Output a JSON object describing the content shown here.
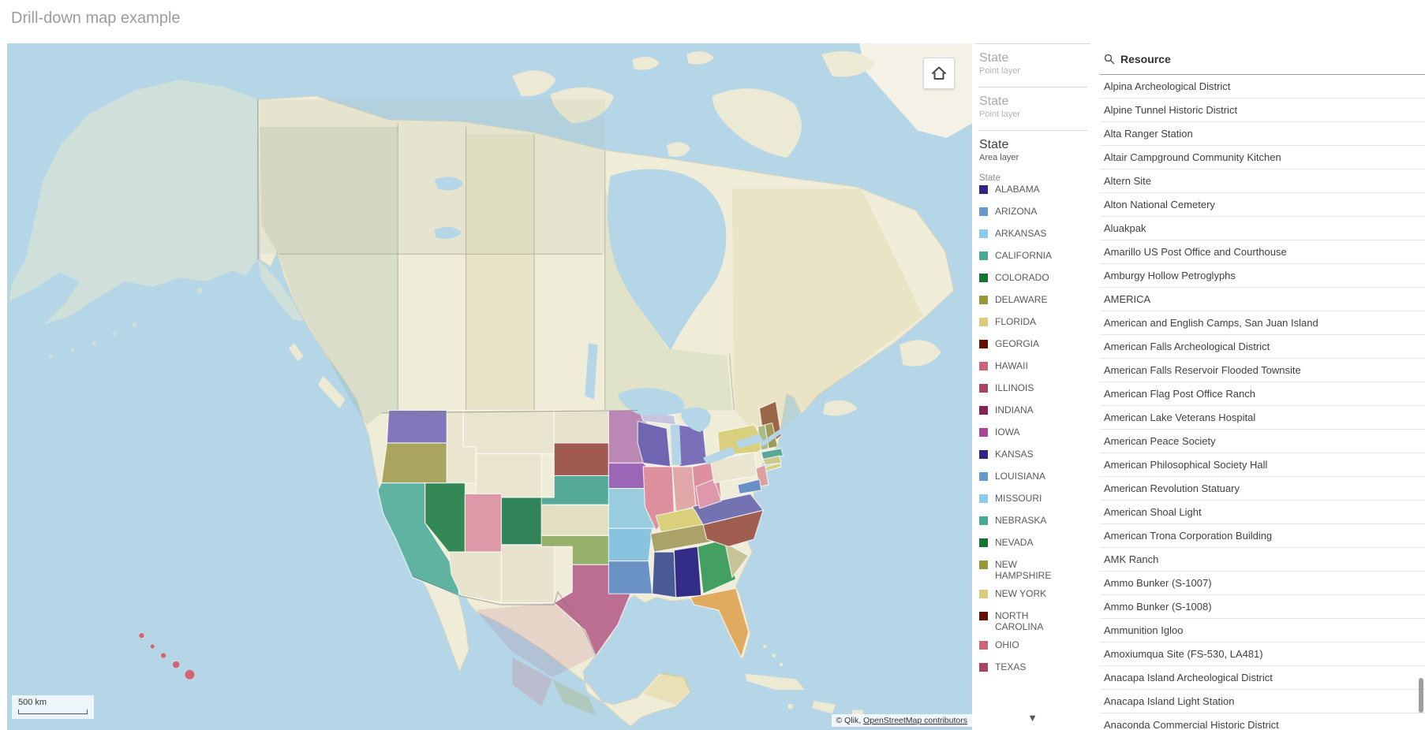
{
  "page": {
    "title": "Drill-down map example"
  },
  "map": {
    "scale_label": "500 km",
    "attribution_prefix": "© Qlik, ",
    "attribution_link": "OpenStreetMap contributors",
    "region_colors": {
      "WATER": "#b5d6e7",
      "LAND": "#efecd8",
      "ISLAND": "#ece9d4",
      "ALASKA": "#cfdfd9",
      "GREENLAND": "#f4f2e6",
      "MEXICO": "#ece8cf",
      "WA": "#8078ba",
      "OR": "#aaa55e",
      "CA": "#5fb3a0",
      "NV": "#338855",
      "UT": "#dd99a8",
      "AZ": "#e7e3cc",
      "ID": "#e9e5cf",
      "MT": "#e9e5cf",
      "WY": "#e9e5cf",
      "CO": "#2f8356",
      "NM": "#e7e3cc",
      "ND": "#e6e2cb",
      "SD": "#a05a50",
      "NE": "#55ab97",
      "KS": "#e3e0c2",
      "OK": "#97b06b",
      "TX": "#bb6e90",
      "MN": "#bb88b5",
      "IA": "#9a66b5",
      "MO": "#99ccdd",
      "AR": "#88c4e0",
      "LA": "#6a92c5",
      "WI": "#6f65b0",
      "MI": "#7a70b8",
      "MIUP": "#c8c4de",
      "IL": "#dd8f9d",
      "IN": "#e0a8a8",
      "OH": "#dd8fa0",
      "KY": "#d8d07a",
      "TN": "#aaa268",
      "MS": "#4a5a95",
      "AL": "#332d88",
      "GA": "#44a060",
      "SC": "#c9c39a",
      "NC": "#9f5e50",
      "VA": "#7572b2",
      "WV": "#dd99ab",
      "PA": "#e9e5cf",
      "NY": "#d8d07d",
      "LI": "#d8d07d",
      "ME": "#9a6648",
      "VT": "#a8bb88",
      "NH": "#a09c58",
      "MA": "#58a898",
      "CT": "#ccc890",
      "NJ": "#dd9f9f",
      "MD": "#6a8fc5",
      "FL": "#e0aa5f",
      "HI": "#cc6677"
    }
  },
  "legend": {
    "layers": [
      {
        "title": "State",
        "subtitle": "Point layer"
      },
      {
        "title": "State",
        "subtitle": "Point layer"
      },
      {
        "title": "State",
        "subtitle": "Area layer",
        "dimension": "State"
      }
    ],
    "scroll_down": "▼",
    "items": [
      {
        "label": "ALABAMA",
        "color": "#332288"
      },
      {
        "label": "ARIZONA",
        "color": "#6699CC"
      },
      {
        "label": "ARKANSAS",
        "color": "#88CCEE"
      },
      {
        "label": "CALIFORNIA",
        "color": "#44AA99"
      },
      {
        "label": "COLORADO",
        "color": "#117733"
      },
      {
        "label": "DELAWARE",
        "color": "#999933"
      },
      {
        "label": "FLORIDA",
        "color": "#DDCC77"
      },
      {
        "label": "GEORGIA",
        "color": "#661100"
      },
      {
        "label": "HAWAII",
        "color": "#CC6677"
      },
      {
        "label": "ILLINOIS",
        "color": "#AA4466"
      },
      {
        "label": "INDIANA",
        "color": "#882255"
      },
      {
        "label": "IOWA",
        "color": "#AA4499"
      },
      {
        "label": "KANSAS",
        "color": "#332288"
      },
      {
        "label": "LOUISIANA",
        "color": "#6699CC"
      },
      {
        "label": "MISSOURI",
        "color": "#88CCEE"
      },
      {
        "label": "NEBRASKA",
        "color": "#44AA99"
      },
      {
        "label": "NEVADA",
        "color": "#117733"
      },
      {
        "label": "NEW HAMPSHIRE",
        "color": "#999933"
      },
      {
        "label": "NEW YORK",
        "color": "#DDCC77"
      },
      {
        "label": "NORTH CAROLINA",
        "color": "#661100"
      },
      {
        "label": "OHIO",
        "color": "#CC6677"
      },
      {
        "label": "TEXAS",
        "color": "#AA4466"
      }
    ]
  },
  "resource_panel": {
    "header": "Resource",
    "items": [
      "Alpina Archeological District",
      "Alpine Tunnel Historic District",
      "Alta Ranger Station",
      "Altair Campground Community Kitchen",
      "Altern Site",
      "Alton National Cemetery",
      "Aluakpak",
      "Amarillo US Post Office and Courthouse",
      "Amburgy Hollow Petroglyphs",
      "AMERICA",
      "American and English Camps, San Juan Island",
      "American Falls Archeological District",
      "American Falls Reservoir Flooded Townsite",
      "American Flag Post Office Ranch",
      "American Lake Veterans Hospital",
      "American Peace Society",
      "American Philosophical Society Hall",
      "American Revolution Statuary",
      "American Shoal Light",
      "American Trona Corporation Building",
      "AMK Ranch",
      "Ammo Bunker (S-1007)",
      "Ammo Bunker (S-1008)",
      "Ammunition Igloo",
      "Amoxiumqua Site (FS-530, LA481)",
      "Anacapa Island Archeological District",
      "Anacapa Island Light Station",
      "Anaconda Commercial Historic District"
    ]
  }
}
